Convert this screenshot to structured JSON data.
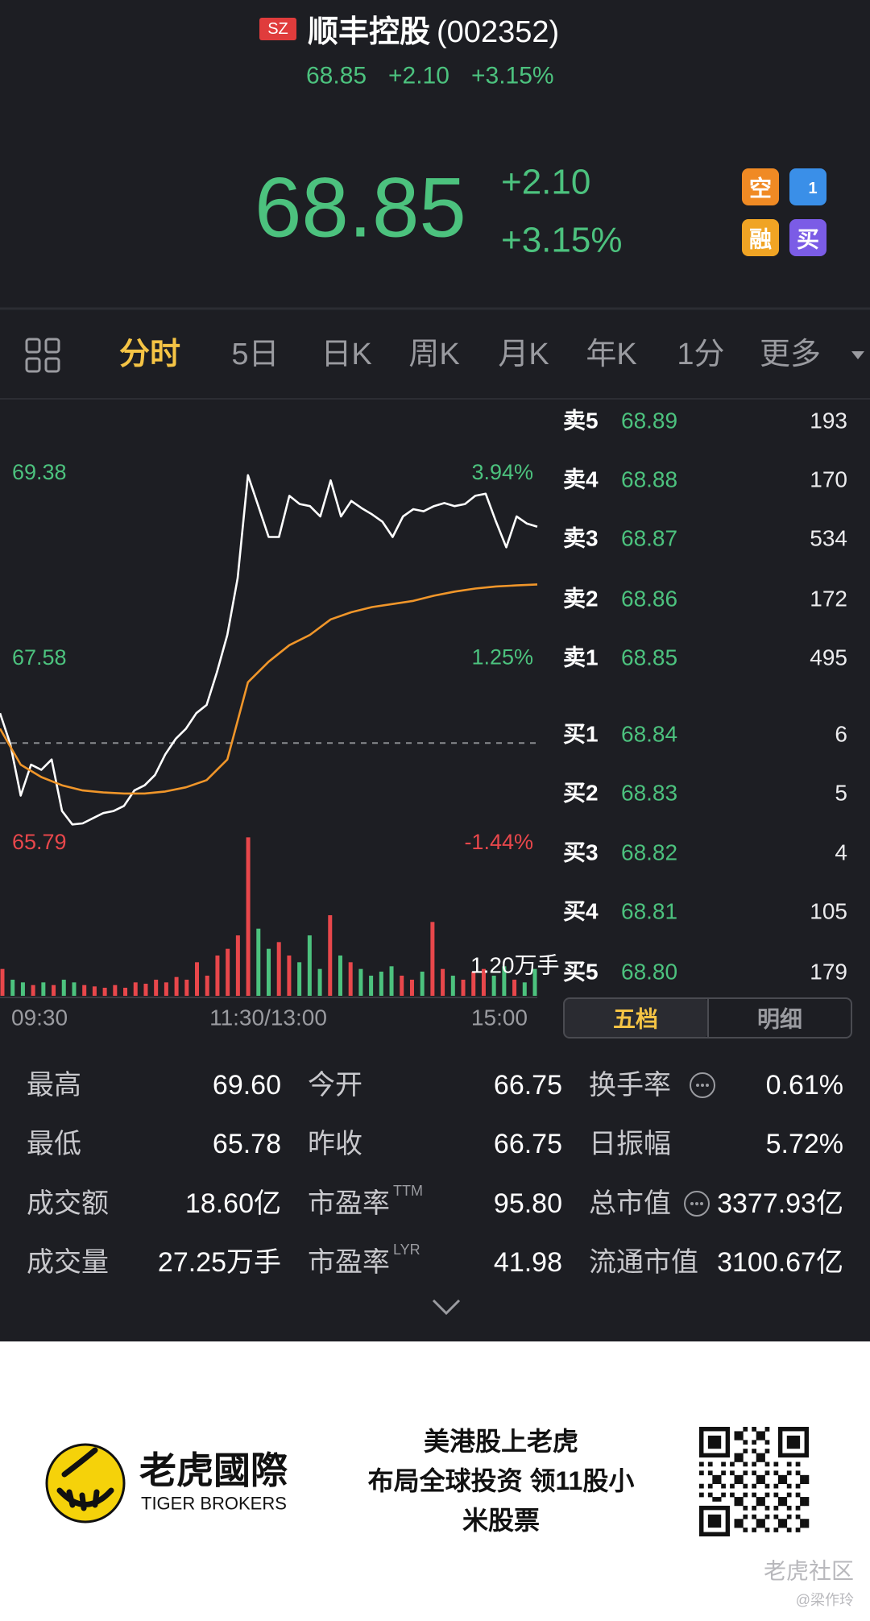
{
  "header": {
    "badge": "SZ",
    "name": "顺丰控股",
    "code": "(002352)",
    "price": "68.85",
    "change": "+2.10",
    "change_pct": "+3.15%"
  },
  "quote": {
    "price": "68.85",
    "change": "+2.10",
    "change_pct": "+3.15%"
  },
  "badges": [
    "空",
    "1",
    "融",
    "买"
  ],
  "tabs": {
    "items": [
      "分时",
      "5日",
      "日K",
      "周K",
      "月K",
      "年K",
      "1分",
      "更多"
    ],
    "active": 0
  },
  "chart_data": {
    "type": "line",
    "ylim": [
      65.79,
      69.38
    ],
    "yticks": [
      69.38,
      67.58,
      65.79
    ],
    "y2lim": [
      -1.44,
      3.94
    ],
    "y2ticks": [
      {
        "value": 3.94,
        "label": "3.94%"
      },
      {
        "value": 1.25,
        "label": "1.25%"
      },
      {
        "value": -1.44,
        "label": "-1.44%"
      }
    ],
    "reference": 66.75,
    "up_color": "#4cc27e",
    "down_color": "#e8474b",
    "x_labels": [
      "09:30",
      "11:30/13:00",
      "15:00"
    ],
    "series": [
      {
        "color": "#ffffff",
        "values": [
          67.04,
          66.74,
          66.24,
          66.54,
          66.49,
          66.59,
          66.09,
          65.96,
          65.97,
          66.02,
          66.07,
          66.09,
          66.14,
          66.29,
          66.34,
          66.44,
          66.64,
          66.79,
          66.89,
          67.04,
          67.12,
          67.44,
          67.8,
          68.35,
          69.35,
          69.05,
          68.75,
          68.75,
          69.15,
          69.07,
          69.05,
          68.95,
          69.3,
          68.95,
          69.1,
          69.03,
          68.97,
          68.9,
          68.75,
          68.95,
          69.02,
          69.0,
          69.05,
          69.08,
          69.05,
          69.07,
          69.15,
          69.17,
          68.9,
          68.65,
          68.95,
          68.88,
          68.85
        ]
      },
      {
        "color": "#f0962a",
        "values": [
          66.89,
          66.54,
          66.42,
          66.34,
          66.29,
          66.27,
          66.26,
          66.26,
          66.28,
          66.32,
          66.39,
          66.59,
          67.34,
          67.54,
          67.7,
          67.8,
          67.95,
          68.02,
          68.07,
          68.1,
          68.13,
          68.18,
          68.22,
          68.25,
          68.27,
          68.28,
          68.29
        ]
      }
    ],
    "volume": {
      "max": {
        "value": 1.2,
        "label": "1.20万手"
      },
      "values": [
        0.2,
        0.12,
        0.1,
        0.08,
        0.1,
        0.08,
        0.12,
        0.1,
        0.08,
        0.07,
        0.06,
        0.08,
        0.06,
        0.1,
        0.09,
        0.12,
        0.1,
        0.14,
        0.12,
        0.25,
        0.15,
        0.3,
        0.35,
        0.45,
        1.18,
        0.5,
        0.35,
        0.4,
        0.3,
        0.25,
        0.45,
        0.2,
        0.6,
        0.3,
        0.25,
        0.2,
        0.15,
        0.18,
        0.22,
        0.15,
        0.12,
        0.18,
        0.55,
        0.2,
        0.15,
        0.12,
        0.18,
        0.2,
        0.15,
        0.22,
        0.12,
        0.1,
        0.2
      ]
    }
  },
  "order_book": {
    "asks": [
      {
        "label": "卖5",
        "price": "68.89",
        "qty": "193"
      },
      {
        "label": "卖4",
        "price": "68.88",
        "qty": "170"
      },
      {
        "label": "卖3",
        "price": "68.87",
        "qty": "534"
      },
      {
        "label": "卖2",
        "price": "68.86",
        "qty": "172"
      },
      {
        "label": "卖1",
        "price": "68.85",
        "qty": "495"
      }
    ],
    "bids": [
      {
        "label": "买1",
        "price": "68.84",
        "qty": "6"
      },
      {
        "label": "买2",
        "price": "68.83",
        "qty": "5"
      },
      {
        "label": "买3",
        "price": "68.82",
        "qty": "4"
      },
      {
        "label": "买4",
        "price": "68.81",
        "qty": "105"
      },
      {
        "label": "买5",
        "price": "68.80",
        "qty": "179"
      }
    ],
    "tabs": [
      "五档",
      "明细"
    ],
    "active": 0
  },
  "stats": [
    [
      {
        "label": "最高",
        "value": "69.60"
      },
      {
        "label": "今开",
        "value": "66.75"
      },
      {
        "label": "换手率",
        "value": "0.61%"
      }
    ],
    [
      {
        "label": "最低",
        "value": "65.78"
      },
      {
        "label": "昨收",
        "value": "66.75"
      },
      {
        "label": "日振幅",
        "value": "5.72%"
      }
    ],
    [
      {
        "label": "成交额",
        "value": "18.60亿"
      },
      {
        "label": "市盈率",
        "sup": "TTM",
        "value": "95.80"
      },
      {
        "label": "总市值",
        "value": "3377.93亿"
      }
    ],
    [
      {
        "label": "成交量",
        "value": "27.25万手"
      },
      {
        "label": "市盈率",
        "sup": "LYR",
        "value": "41.98"
      },
      {
        "label": "流通市值",
        "value": "3100.67亿"
      }
    ]
  ],
  "footer": {
    "brand": "老虎國際",
    "brand_en": "TIGER BROKERS",
    "slogan": [
      "美港股上老虎",
      "布局全球投资 领11股小",
      "米股票"
    ],
    "watermark": "老虎社区",
    "author": "@梁作玲"
  }
}
